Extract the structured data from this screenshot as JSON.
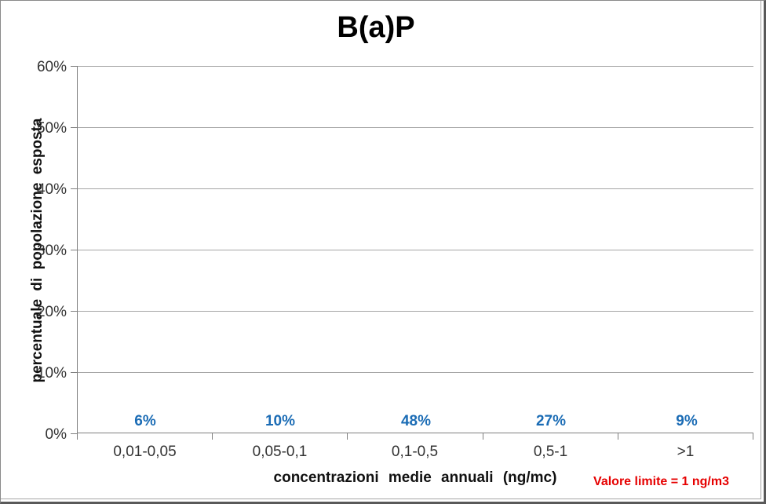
{
  "chart_data": {
    "type": "bar",
    "title": "B(a)P",
    "categories": [
      "0,01-0,05",
      "0,05-0,1",
      "0,1-0,5",
      "0,5-1",
      ">1"
    ],
    "values": [
      6,
      10,
      48,
      27,
      9
    ],
    "labels": [
      "6%",
      "10%",
      "48%",
      "27%",
      "9%"
    ],
    "xlabel": "concentrazioni medie annuali (ng/mc)",
    "ylabel": "percentuale di popolazione esposta",
    "ylim": [
      0,
      60
    ],
    "y_tick_step": 10,
    "y_ticks": [
      "0%",
      "10%",
      "20%",
      "30%",
      "40%",
      "50%",
      "60%"
    ],
    "grid": true,
    "legend": "none",
    "bar_color": "#00AEEF",
    "label_color": "#1B6CB5",
    "axis_color": "#808080",
    "grid_color": "#A6A6A6",
    "annotation": {
      "text": "Valore limite = 1 ng/m3",
      "color": "#E60000"
    }
  }
}
